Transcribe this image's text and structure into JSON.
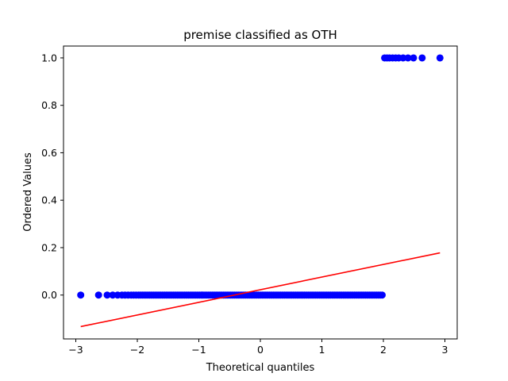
{
  "chart_data": {
    "type": "scatter",
    "title": "premise classified as OTH",
    "xlabel": "Theoretical quantiles",
    "ylabel": "Ordered Values",
    "xlim": [
      -3.2,
      3.2
    ],
    "ylim": [
      -0.185,
      1.05
    ],
    "xticks": [
      -3,
      -2,
      -1,
      0,
      1,
      2,
      3
    ],
    "xtick_labels": [
      "−3",
      "−2",
      "−1",
      "0",
      "1",
      "2",
      "3"
    ],
    "yticks": [
      0.0,
      0.2,
      0.4,
      0.6,
      0.8,
      1.0
    ],
    "ytick_labels": [
      "0.0",
      "0.2",
      "0.4",
      "0.6",
      "0.8",
      "1.0"
    ],
    "grid": false,
    "series": [
      {
        "kind": "scatter",
        "color": "#0000ff",
        "points_y0": {
          "y": 0,
          "x": [
            -2.92,
            -2.63,
            -2.49,
            -2.4,
            -2.32,
            -2.25,
            -2.2,
            -2.15,
            -2.1,
            -2.06,
            -2.02,
            -1.98,
            -1.95,
            -1.92,
            -1.89,
            -1.86,
            -1.83,
            -1.8,
            -1.77,
            -1.74,
            -1.71,
            -1.68,
            -1.65,
            -1.62,
            -1.59,
            -1.56,
            -1.53,
            -1.5,
            -1.47,
            -1.44,
            -1.41,
            -1.38,
            -1.35,
            -1.32,
            -1.29,
            -1.26,
            -1.23,
            -1.2,
            -1.17,
            -1.14,
            -1.11,
            -1.08,
            -1.05,
            -1.02,
            -0.99,
            -0.96,
            -0.93,
            -0.9,
            -0.87,
            -0.84,
            -0.81,
            -0.78,
            -0.75,
            -0.72,
            -0.69,
            -0.66,
            -0.63,
            -0.6,
            -0.57,
            -0.54,
            -0.51,
            -0.48,
            -0.45,
            -0.42,
            -0.39,
            -0.36,
            -0.33,
            -0.3,
            -0.27,
            -0.24,
            -0.21,
            -0.18,
            -0.15,
            -0.12,
            -0.09,
            -0.06,
            -0.03,
            0.0,
            0.03,
            0.06,
            0.09,
            0.12,
            0.15,
            0.18,
            0.21,
            0.24,
            0.27,
            0.3,
            0.33,
            0.36,
            0.39,
            0.42,
            0.45,
            0.48,
            0.51,
            0.54,
            0.57,
            0.6,
            0.63,
            0.66,
            0.69,
            0.72,
            0.75,
            0.78,
            0.81,
            0.84,
            0.87,
            0.9,
            0.93,
            0.96,
            0.99,
            1.02,
            1.05,
            1.08,
            1.11,
            1.14,
            1.17,
            1.2,
            1.23,
            1.26,
            1.29,
            1.32,
            1.35,
            1.38,
            1.41,
            1.44,
            1.47,
            1.5,
            1.53,
            1.56,
            1.59,
            1.62,
            1.65,
            1.68,
            1.71,
            1.74,
            1.77,
            1.8,
            1.83,
            1.86,
            1.89,
            1.92,
            1.95,
            1.98
          ]
        },
        "points_y1": {
          "y": 1,
          "x": [
            2.02,
            2.06,
            2.1,
            2.15,
            2.2,
            2.25,
            2.32,
            2.4,
            2.49,
            2.63,
            2.92
          ]
        }
      },
      {
        "kind": "line",
        "color": "#ff0000",
        "x": [
          -2.92,
          2.92
        ],
        "y": [
          -0.133,
          0.178
        ]
      }
    ]
  }
}
